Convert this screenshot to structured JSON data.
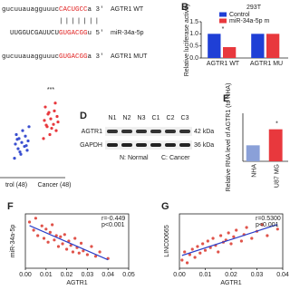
{
  "sequences": {
    "lines": [
      {
        "segments": [
          {
            "text": "gucuuauagguuuc",
            "color": "#222222"
          },
          {
            "text": "CACUGCC",
            "color": "#e02020"
          },
          {
            "text": "a 3'",
            "color": "#222222"
          }
        ],
        "label": "AGTR1 WT"
      },
      {
        "segments": [
          {
            "text": "UUGGUCGAUUCU",
            "color": "#222222"
          },
          {
            "text": "GUGACGG",
            "color": "#e02020"
          },
          {
            "text": "u 5'",
            "color": "#222222"
          }
        ],
        "label": "miR-34a-5p"
      },
      {
        "segments": [
          {
            "text": "gucuuauagguuuc",
            "color": "#222222"
          },
          {
            "text": "GUGACGG",
            "color": "#e02020"
          },
          {
            "text": "a 3'",
            "color": "#222222"
          }
        ],
        "label": "AGTR1 MUT"
      }
    ],
    "pairing": "|||||||"
  },
  "blot": {
    "panel_label": "D",
    "lanes": [
      "N1",
      "N2",
      "N3",
      "C1",
      "C2",
      "C3"
    ],
    "rows": [
      {
        "name": "AGTR1",
        "size": "42 kDa"
      },
      {
        "name": "GAPDH",
        "size": "36 kDa"
      }
    ],
    "legend": [
      "N: Normal",
      "C: Cancer"
    ]
  },
  "chart_data": [
    {
      "type": "bar",
      "panel_label": "B",
      "title": "293T",
      "ylabel": "Relative luciferase activity",
      "categories": [
        "AGTR1 WT",
        "AGTR1 MU"
      ],
      "series": [
        {
          "name": "Control",
          "color": "#1f3fd6",
          "values": [
            1.0,
            1.0
          ]
        },
        {
          "name": "miR-34a-5p m",
          "color": "#e8383d",
          "values": [
            0.45,
            1.0
          ]
        }
      ],
      "ylim": [
        0,
        1.5
      ],
      "yticks": [
        {
          "value": 0,
          "label": "0.0"
        },
        {
          "value": 0.5,
          "label": "0.5"
        },
        {
          "value": 1,
          "label": "1.0"
        },
        {
          "value": 1.5,
          "label": "1.5"
        }
      ],
      "annotation": "*"
    },
    {
      "type": "strip",
      "categories": [
        "trol (48)",
        "Cancer (48)"
      ],
      "colors": [
        "#3a4fd0",
        "#e8383d"
      ],
      "values": [
        [
          2,
          2.5,
          3,
          3.2,
          3.5,
          3.8,
          4,
          4.2,
          4.5,
          4.8,
          5,
          5.5,
          6,
          2.8,
          3.6,
          4.4
        ],
        [
          4.5,
          5,
          5.5,
          6,
          6.3,
          6.8,
          7,
          7.3,
          7.6,
          8,
          8.5,
          5.8,
          6.6,
          7.8,
          9,
          6.2
        ]
      ],
      "ylim": [
        0,
        10
      ],
      "annotation": "***"
    },
    {
      "type": "bar",
      "panel_label": "E",
      "ylabel": "Relative RNA level of AGTR1 (to NHA)",
      "categories": [
        "NHA",
        "U87 MG"
      ],
      "series": [
        {
          "color": "#e8383d",
          "values": [
            1.0,
            2.0
          ]
        }
      ],
      "ylim": [
        0,
        3
      ],
      "annotation": "*"
    },
    {
      "type": "scatter",
      "panel_label": "F",
      "xlabel": "AGTR1",
      "ylabel": "miR-34a-5p",
      "color": "#e0534a",
      "line_color": "#2b3fc9",
      "x": [
        0.002,
        0.004,
        0.005,
        0.006,
        0.008,
        0.009,
        0.01,
        0.011,
        0.012,
        0.013,
        0.014,
        0.015,
        0.016,
        0.017,
        0.018,
        0.019,
        0.02,
        0.021,
        0.022,
        0.023,
        0.024,
        0.025,
        0.026,
        0.027,
        0.028,
        0.03,
        0.032,
        0.034,
        0.036,
        0.04
      ],
      "y": [
        0.85,
        0.7,
        0.92,
        0.6,
        0.78,
        0.55,
        0.72,
        0.48,
        0.66,
        0.8,
        0.52,
        0.6,
        0.4,
        0.58,
        0.45,
        0.62,
        0.35,
        0.5,
        0.42,
        0.3,
        0.55,
        0.38,
        0.28,
        0.46,
        0.32,
        0.25,
        0.4,
        0.22,
        0.3,
        0.18
      ],
      "xlim": [
        0,
        0.05
      ],
      "ylim": [
        0,
        1
      ],
      "xticks": [
        {
          "value": 0,
          "label": "0.00"
        },
        {
          "value": 0.01,
          "label": "0.01"
        },
        {
          "value": 0.02,
          "label": "0.02"
        },
        {
          "value": 0.03,
          "label": "0.03"
        },
        {
          "value": 0.04,
          "label": "0.04"
        },
        {
          "value": 0.05,
          "label": "0.05"
        }
      ],
      "annotations": [
        "r=-0.449",
        "p<0.001"
      ]
    },
    {
      "type": "scatter",
      "panel_label": "G",
      "xlabel": "AGTR1",
      "ylabel": "LINC00665",
      "color": "#e0534a",
      "line_color": "#2b3fc9",
      "x": [
        0.001,
        0.002,
        0.003,
        0.004,
        0.005,
        0.006,
        0.007,
        0.008,
        0.009,
        0.01,
        0.011,
        0.012,
        0.013,
        0.014,
        0.015,
        0.016,
        0.017,
        0.018,
        0.019,
        0.02,
        0.021,
        0.022,
        0.024,
        0.025,
        0.026,
        0.028,
        0.03,
        0.032,
        0.034,
        0.038
      ],
      "y": [
        0.15,
        0.3,
        0.1,
        0.25,
        0.35,
        0.2,
        0.4,
        0.28,
        0.45,
        0.33,
        0.5,
        0.38,
        0.55,
        0.42,
        0.3,
        0.6,
        0.48,
        0.52,
        0.65,
        0.45,
        0.58,
        0.7,
        0.5,
        0.62,
        0.75,
        0.55,
        0.68,
        0.8,
        0.6,
        0.72
      ],
      "xlim": [
        0,
        0.04
      ],
      "ylim": [
        0,
        1
      ],
      "xticks": [
        {
          "value": 0,
          "label": "0.00"
        },
        {
          "value": 0.01,
          "label": "0.01"
        },
        {
          "value": 0.02,
          "label": "0.02"
        },
        {
          "value": 0.03,
          "label": "0.03"
        },
        {
          "value": 0.04,
          "label": "0.04"
        }
      ],
      "annotations": [
        "r=0.5300",
        "p<0.001"
      ]
    }
  ]
}
